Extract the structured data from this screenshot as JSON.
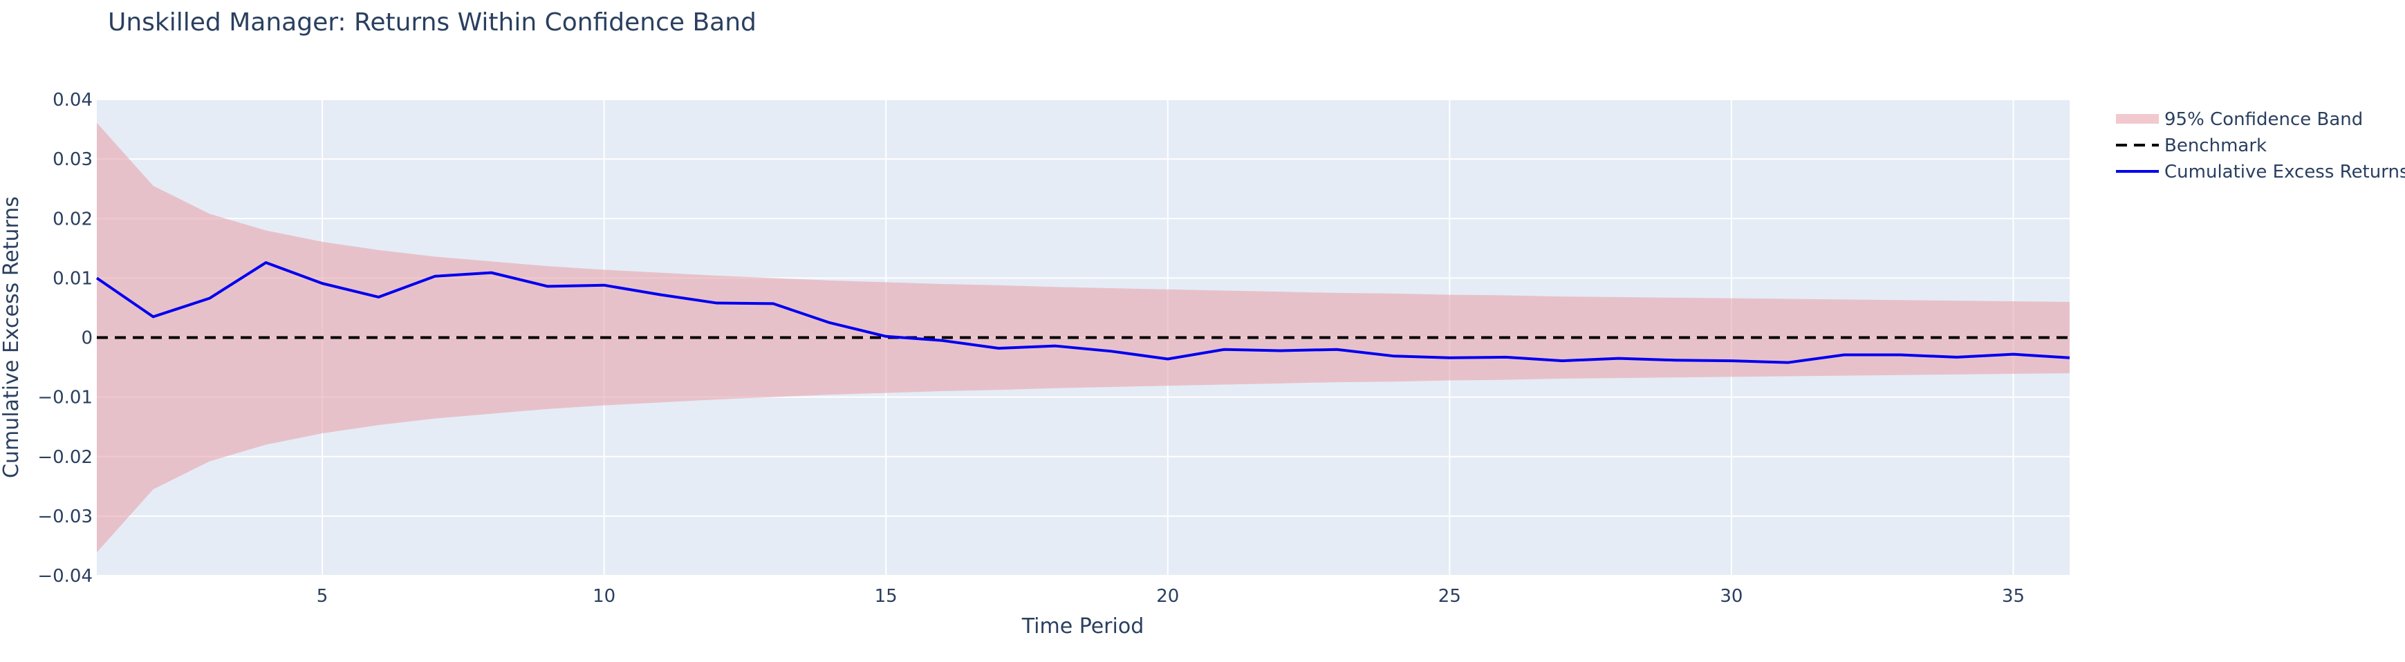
{
  "chart_data": {
    "type": "line",
    "title": "Unskilled Manager: Returns Within Confidence Band",
    "xlabel": "Time Period",
    "ylabel": "Cumulative Excess Returns",
    "xlim": [
      1,
      36
    ],
    "ylim": [
      -0.04,
      0.04
    ],
    "x_ticks": [
      5,
      10,
      15,
      20,
      25,
      30,
      35
    ],
    "x_tick_labels": [
      "5",
      "10",
      "15",
      "20",
      "25",
      "30",
      "35"
    ],
    "y_ticks": [
      -0.04,
      -0.03,
      -0.02,
      -0.01,
      0,
      0.01,
      0.02,
      0.03,
      0.04
    ],
    "y_tick_labels": [
      "−0.04",
      "−0.03",
      "−0.02",
      "−0.01",
      "0",
      "0.01",
      "0.02",
      "0.03",
      "0.04"
    ],
    "grid": true,
    "legend_position": "top-right",
    "x": [
      1,
      2,
      3,
      4,
      5,
      6,
      7,
      8,
      9,
      10,
      11,
      12,
      13,
      14,
      15,
      16,
      17,
      18,
      19,
      20,
      21,
      22,
      23,
      24,
      25,
      26,
      27,
      28,
      29,
      30,
      31,
      32,
      33,
      34,
      35,
      36
    ],
    "series": [
      {
        "name": "95% Confidence Band",
        "kind": "band",
        "color": "#e8a5ad",
        "upper": [
          0.0361,
          0.0255,
          0.0208,
          0.018,
          0.0161,
          0.0147,
          0.0136,
          0.0128,
          0.012,
          0.0114,
          0.0109,
          0.0104,
          0.01,
          0.0096,
          0.0093,
          0.009,
          0.0088,
          0.0085,
          0.0083,
          0.0081,
          0.0079,
          0.0077,
          0.0075,
          0.0074,
          0.0072,
          0.0071,
          0.0069,
          0.0068,
          0.0067,
          0.0066,
          0.0065,
          0.0064,
          0.0063,
          0.0062,
          0.0061,
          0.006
        ],
        "lower": [
          -0.0361,
          -0.0255,
          -0.0208,
          -0.018,
          -0.0161,
          -0.0147,
          -0.0136,
          -0.0128,
          -0.012,
          -0.0114,
          -0.0109,
          -0.0104,
          -0.01,
          -0.0096,
          -0.0093,
          -0.009,
          -0.0088,
          -0.0085,
          -0.0083,
          -0.0081,
          -0.0079,
          -0.0077,
          -0.0075,
          -0.0074,
          -0.0072,
          -0.0071,
          -0.0069,
          -0.0068,
          -0.0067,
          -0.0066,
          -0.0065,
          -0.0064,
          -0.0063,
          -0.0062,
          -0.0061,
          -0.006
        ]
      },
      {
        "name": "Benchmark",
        "kind": "dashed-line",
        "color": "#000000",
        "values": [
          0,
          0,
          0,
          0,
          0,
          0,
          0,
          0,
          0,
          0,
          0,
          0,
          0,
          0,
          0,
          0,
          0,
          0,
          0,
          0,
          0,
          0,
          0,
          0,
          0,
          0,
          0,
          0,
          0,
          0,
          0,
          0,
          0,
          0,
          0,
          0
        ]
      },
      {
        "name": "Cumulative Excess Returns",
        "kind": "line",
        "color": "#0000ee",
        "values": [
          0.01,
          0.0035,
          0.0066,
          0.0126,
          0.0091,
          0.0068,
          0.0103,
          0.0109,
          0.0086,
          0.0088,
          0.0072,
          0.0058,
          0.0057,
          0.0025,
          0.0002,
          -0.0005,
          -0.0018,
          -0.0014,
          -0.0023,
          -0.0036,
          -0.002,
          -0.0022,
          -0.002,
          -0.0031,
          -0.0034,
          -0.0033,
          -0.0039,
          -0.0035,
          -0.0038,
          -0.0039,
          -0.0042,
          -0.0029,
          -0.0029,
          -0.0033,
          -0.0028,
          -0.0034
        ]
      }
    ]
  },
  "colors": {
    "plot_background": "#e5ecf6",
    "grid": "#ffffff",
    "text": "#2a3f5f"
  }
}
